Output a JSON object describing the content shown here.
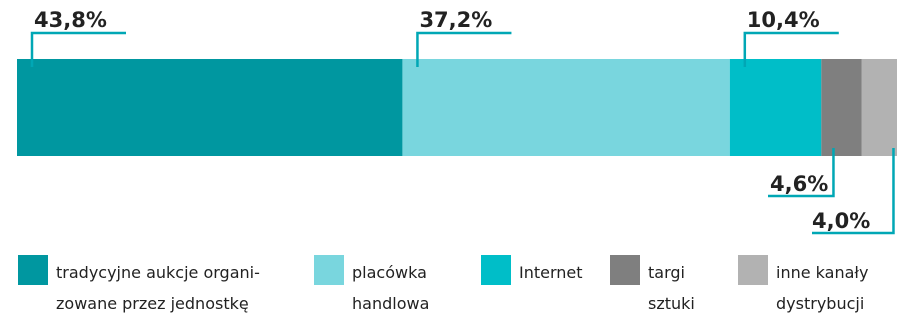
{
  "chart_data": {
    "type": "bar",
    "orientation": "horizontal-stacked",
    "series": [
      {
        "name": "tradycyjne aukcje organizowane przez jednostkę",
        "value": 43.8,
        "label": "43,8%",
        "color": "#0097a0"
      },
      {
        "name": "placówka handlowa",
        "value": 37.2,
        "label": "37,2%",
        "color": "#79d6de"
      },
      {
        "name": "Internet",
        "value": 10.4,
        "label": "10,4%",
        "color": "#00bec8"
      },
      {
        "name": "targi sztuki",
        "value": 4.6,
        "label": "4,6%",
        "color": "#7f7f7f"
      },
      {
        "name": "inne kanały dystrybucji",
        "value": 4.0,
        "label": "4,0%",
        "color": "#b2b2b2"
      }
    ],
    "callout_color": "#00a7b5"
  },
  "legend": [
    {
      "line1": "tradycyjne aukcje organi-",
      "line2": "zowane przez jednostkę",
      "color": "#0097a0"
    },
    {
      "line1": "placówka",
      "line2": "handlowa",
      "color": "#79d6de"
    },
    {
      "line1": "Internet",
      "line2": "",
      "color": "#00bec8"
    },
    {
      "line1": "targi",
      "line2": "sztuki",
      "color": "#7f7f7f"
    },
    {
      "line1": "inne kanały",
      "line2": "dystrybucji",
      "color": "#b2b2b2"
    }
  ]
}
